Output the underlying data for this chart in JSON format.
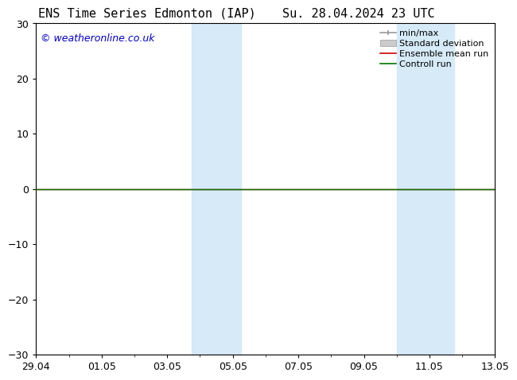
{
  "title_left": "ENS Time Series Edmonton (IAP)",
  "title_right": "Su. 28.04.2024 23 UTC",
  "watermark": "© weatheronline.co.uk",
  "watermark_color": "#0000cc",
  "ylim": [
    -30,
    30
  ],
  "yticks": [
    -30,
    -20,
    -10,
    0,
    10,
    20,
    30
  ],
  "xlim": [
    0,
    14
  ],
  "xtick_labels": [
    "29.04",
    "01.05",
    "03.05",
    "05.05",
    "07.05",
    "09.05",
    "11.05",
    "13.05"
  ],
  "xtick_positions": [
    0,
    2,
    4,
    6,
    8,
    10,
    12,
    14
  ],
  "shaded_bands": [
    {
      "x_start": 4.75,
      "x_end": 6.25
    },
    {
      "x_start": 11.0,
      "x_end": 12.75
    }
  ],
  "shaded_color": "#d6eaf8",
  "zero_line_color": "#000000",
  "control_run_color": "#007700",
  "ensemble_mean_color": "#cc0000",
  "background_color": "#ffffff",
  "plot_bg_color": "#ffffff",
  "grid_color": "#999999",
  "title_fontsize": 11,
  "axis_fontsize": 9,
  "legend_fontsize": 8,
  "watermark_fontsize": 9
}
